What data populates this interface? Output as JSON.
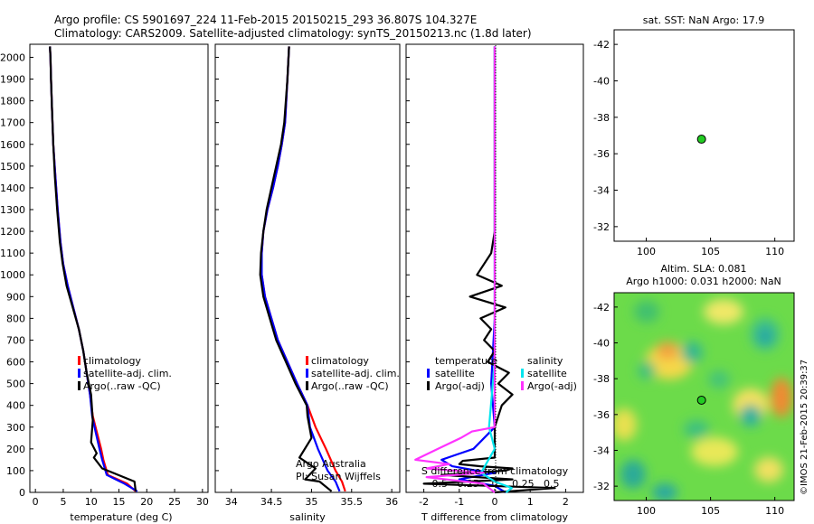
{
  "header": {
    "line1": "Argo profile: CS 5901697_224 11-Feb-2015 20150215_293 36.807S 104.327E",
    "line2": "Climatology: CARS2009. Satellite-adjusted climatology: synTS_20150213.nc (1.8d later)"
  },
  "colors": {
    "climatology": "#ff0000",
    "satellite": "#0000ff",
    "argo": "#000000",
    "satellite_s": "#00e5ee",
    "argo_s": "#ff33ff",
    "float_marker": "#22cc22"
  },
  "legend_labels": {
    "climatology": "climatology",
    "satellite_adj": "satellite-adj. clim.",
    "argo_raw": "Argo(..raw -QC)",
    "group_temperature": "temperature",
    "group_salinity": "salinity",
    "satellite": "satellite",
    "argo_adj": "Argo(-adj)"
  },
  "annotations": {
    "argo_australia": "Argo Australia",
    "pi": "PI: Susan Wijffels",
    "sst": "sat. SST: NaN Argo: 17.9",
    "sla": "Altim. SLA: 0.081",
    "height": "Argo h1000: 0.031 h2000: NaN",
    "imos": "©IMOS 21-Feb-2015 20:39:37"
  },
  "chart_data": [
    {
      "type": "line",
      "xlabel": "temperature (deg C)",
      "ylabel": "",
      "xlim": [
        -1,
        31
      ],
      "ylim": [
        2060,
        0
      ],
      "xticks": [
        "0",
        "5",
        "10",
        "15",
        "20",
        "25",
        "30"
      ],
      "yticks": [
        "0",
        "100",
        "200",
        "300",
        "400",
        "500",
        "600",
        "700",
        "800",
        "900",
        "1000",
        "1100",
        "1200",
        "1300",
        "1400",
        "1500",
        "1600",
        "1700",
        "1800",
        "1900",
        "2000"
      ],
      "series": [
        {
          "name": "climatology",
          "color": "#ff0000",
          "x": [
            18.0,
            16.5,
            13.0,
            12.2,
            11.8,
            11.0,
            10.3,
            9.8,
            9.2,
            8.6,
            7.8,
            6.8,
            5.8,
            5.0,
            4.5,
            4.0,
            3.6,
            3.2,
            3.0,
            2.8,
            2.7,
            2.6
          ],
          "y": [
            5,
            40,
            80,
            150,
            200,
            280,
            350,
            450,
            550,
            650,
            750,
            850,
            950,
            1050,
            1150,
            1300,
            1450,
            1600,
            1750,
            1900,
            2000,
            2050
          ]
        },
        {
          "name": "satellite-adj. clim.",
          "color": "#0000ff",
          "x": [
            18.3,
            16.0,
            12.8,
            12.0,
            11.5,
            10.8,
            10.2,
            9.8,
            9.2,
            8.6,
            7.8,
            6.8,
            5.8,
            5.0,
            4.5,
            4.0,
            3.6,
            3.2,
            3.0,
            2.8,
            2.7,
            2.6
          ],
          "y": [
            5,
            40,
            80,
            150,
            200,
            280,
            350,
            450,
            550,
            650,
            750,
            850,
            950,
            1050,
            1150,
            1300,
            1450,
            1600,
            1750,
            1900,
            2000,
            2050
          ]
        },
        {
          "name": "Argo(..raw -QC)",
          "color": "#000000",
          "x": [
            18.0,
            17.8,
            12.0,
            10.5,
            11.0,
            10.0,
            10.3,
            10.0,
            9.2,
            8.6,
            7.8,
            6.7,
            5.6,
            4.9,
            4.4,
            3.9,
            3.5,
            3.2,
            3.0,
            2.8,
            2.7,
            2.6
          ],
          "y": [
            5,
            50,
            110,
            160,
            180,
            230,
            330,
            450,
            550,
            650,
            750,
            850,
            950,
            1050,
            1150,
            1300,
            1450,
            1600,
            1750,
            1900,
            2000,
            2050
          ]
        }
      ]
    },
    {
      "type": "line",
      "xlabel": "salinity",
      "ylabel": "",
      "xlim": [
        33.8,
        36.1
      ],
      "ylim": [
        2060,
        0
      ],
      "xticks": [
        "34",
        "34.5",
        "35",
        "35.5",
        "36"
      ],
      "series": [
        {
          "name": "climatology",
          "color": "#ff0000",
          "x": [
            35.42,
            35.38,
            35.3,
            35.18,
            35.05,
            34.95,
            34.82,
            34.7,
            34.58,
            34.5,
            34.42,
            34.38,
            34.38,
            34.4,
            34.45,
            34.52,
            34.58,
            34.63,
            34.67,
            34.7,
            34.72
          ],
          "y": [
            5,
            50,
            100,
            200,
            300,
            400,
            500,
            600,
            700,
            800,
            900,
            1000,
            1100,
            1200,
            1300,
            1400,
            1500,
            1600,
            1700,
            1900,
            2050
          ]
        },
        {
          "name": "satellite-adj. clim.",
          "color": "#0000ff",
          "x": [
            35.35,
            35.3,
            35.2,
            35.08,
            34.98,
            34.95,
            34.82,
            34.7,
            34.58,
            34.5,
            34.42,
            34.38,
            34.38,
            34.4,
            34.45,
            34.52,
            34.58,
            34.63,
            34.67,
            34.7,
            34.72
          ],
          "y": [
            5,
            50,
            100,
            200,
            300,
            400,
            500,
            600,
            700,
            800,
            900,
            1000,
            1100,
            1200,
            1300,
            1400,
            1500,
            1600,
            1700,
            1900,
            2050
          ]
        },
        {
          "name": "Argo(..raw -QC)",
          "color": "#000000",
          "x": [
            35.25,
            35.1,
            34.92,
            35.05,
            34.85,
            35.0,
            34.95,
            34.94,
            34.8,
            34.68,
            34.56,
            34.48,
            34.4,
            34.36,
            34.37,
            34.4,
            34.44,
            34.5,
            34.56,
            34.62,
            34.66,
            34.7,
            34.72
          ],
          "y": [
            5,
            50,
            60,
            110,
            160,
            250,
            350,
            400,
            500,
            600,
            700,
            800,
            900,
            1000,
            1100,
            1200,
            1300,
            1400,
            1500,
            1600,
            1700,
            1900,
            2050
          ]
        }
      ]
    },
    {
      "type": "line",
      "xlabel": "T difference from climatology",
      "x2label": "S difference from climatology",
      "xlim": [
        -2.5,
        2.5
      ],
      "ylim": [
        2060,
        0
      ],
      "xticks": [
        "-2",
        "-1",
        "0",
        "1",
        "2"
      ],
      "x2ticks": [
        "-0.5",
        "-0.25",
        "0",
        "0.25",
        "0.5"
      ],
      "series": [
        {
          "name": "temperature satellite",
          "color": "#0000ff",
          "x": [
            0.3,
            0.0,
            -1.0,
            0.0,
            -0.5,
            -1.2,
            -1.5,
            -0.6,
            0.0,
            -0.1,
            0.0,
            0.0,
            0.0,
            0.0,
            0.0,
            0.0
          ],
          "y": [
            0,
            30,
            60,
            90,
            100,
            120,
            150,
            200,
            300,
            500,
            800,
            1100,
            1400,
            1700,
            1900,
            2050
          ]
        },
        {
          "name": "temperature Argo(-adj)",
          "color": "#000000",
          "x": [
            0.0,
            1.7,
            -2.0,
            0.5,
            -1.5,
            0.3,
            0.5,
            -0.4,
            -1.0,
            -0.9,
            0.0,
            0.0,
            0.2,
            0.5,
            0.1,
            0.4,
            -0.2,
            0.0,
            -0.3,
            -0.1,
            -0.4,
            0.3,
            -0.7,
            0.2,
            -0.5,
            -0.1,
            0.0,
            0.0,
            0.0,
            0.0
          ],
          "y": [
            0,
            20,
            40,
            60,
            80,
            100,
            110,
            120,
            130,
            145,
            160,
            300,
            400,
            450,
            500,
            550,
            600,
            650,
            700,
            750,
            800,
            850,
            900,
            950,
            1000,
            1100,
            1200,
            1400,
            1700,
            2050
          ]
        },
        {
          "name": "salinity satellite",
          "color": "#00e5ee",
          "x": [
            0.1,
            0.15,
            0.0,
            -0.12,
            0.0,
            -0.05,
            0.0,
            0.0,
            0.0,
            0.0
          ],
          "y": [
            0,
            20,
            50,
            90,
            200,
            300,
            600,
            1000,
            1500,
            2050
          ]
        },
        {
          "name": "salinity Argo(-adj)",
          "color": "#ff33ff",
          "x": [
            0.0,
            -0.1,
            -0.6,
            -0.1,
            -0.6,
            -0.4,
            -0.7,
            -0.5,
            -0.3,
            -0.2,
            0.0,
            0.0,
            0.0
          ],
          "y": [
            0,
            40,
            70,
            90,
            110,
            130,
            150,
            200,
            250,
            280,
            300,
            800,
            2050
          ]
        }
      ]
    },
    {
      "type": "scatter",
      "title": "sat. SST: NaN Argo: 17.9",
      "xlim": [
        97.5,
        111.5
      ],
      "ylim": [
        -42.8,
        -31.2
      ],
      "xticks": [
        "100",
        "105",
        "110"
      ],
      "yticks": [
        "-32",
        "-34",
        "-36",
        "-38",
        "-40",
        "-42"
      ],
      "points": [
        {
          "x": 104.3,
          "y": -36.8
        }
      ]
    },
    {
      "type": "heatmap",
      "title": "Altim. SLA: 0.081 / Argo h1000: 0.031 h2000: NaN",
      "xlim": [
        97.5,
        111.5
      ],
      "ylim": [
        -42.8,
        -31.2
      ],
      "xticks": [
        "100",
        "105",
        "110"
      ],
      "yticks": [
        "-32",
        "-34",
        "-36",
        "-38",
        "-40",
        "-42"
      ],
      "points": [
        {
          "x": 104.3,
          "y": -36.8
        }
      ]
    }
  ]
}
